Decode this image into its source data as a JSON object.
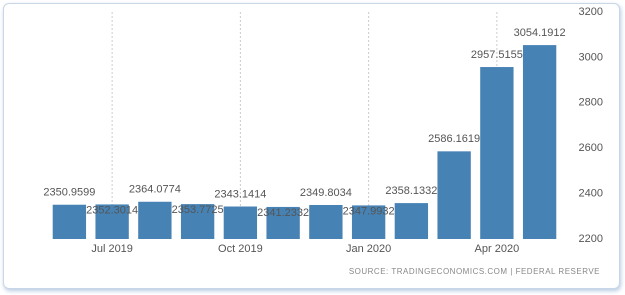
{
  "chart_data": {
    "type": "bar",
    "source": "SOURCE: TRADINGECONOMICS.COM | FEDERAL RESERVE",
    "categories": [
      null,
      "Jul 2019",
      null,
      null,
      "Oct 2019",
      null,
      null,
      "Jan 2020",
      null,
      null,
      "Apr 2020",
      null
    ],
    "values": [
      2350.9599,
      2352.3014,
      2364.0774,
      2353.7725,
      2343.1414,
      2341.2332,
      2349.8034,
      2347.9932,
      2358.1332,
      2586.1619,
      2957.5155,
      3054.1912
    ],
    "color": "#4682b4",
    "ylim": [
      2200,
      3200
    ],
    "yticks": [
      2200,
      2400,
      2600,
      2800,
      3000,
      3200
    ],
    "grid": true
  }
}
